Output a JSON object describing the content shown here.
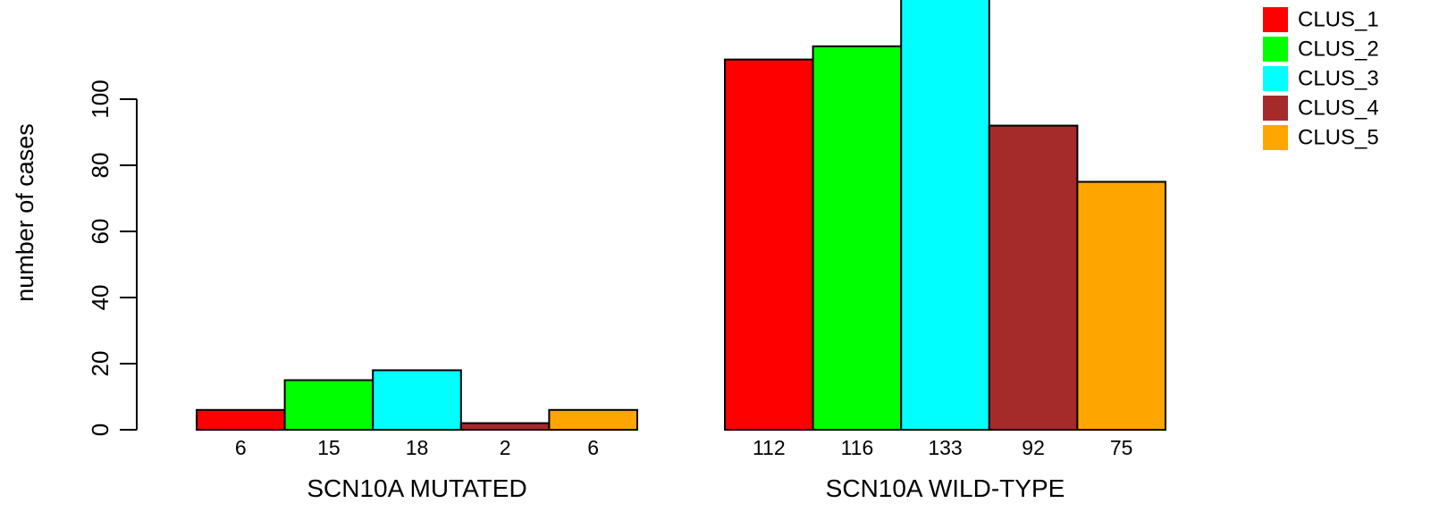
{
  "chart_data": {
    "type": "bar",
    "ylabel": "number of cases",
    "ylim": [
      0,
      130
    ],
    "yticks": [
      0,
      20,
      40,
      60,
      80,
      100
    ],
    "groups": [
      "SCN10A MUTATED",
      "SCN10A WILD-TYPE"
    ],
    "series": [
      {
        "name": "CLUS_1",
        "color": "#ff0000",
        "values": [
          6,
          112
        ]
      },
      {
        "name": "CLUS_2",
        "color": "#00ff00",
        "values": [
          15,
          116
        ]
      },
      {
        "name": "CLUS_3",
        "color": "#00ffff",
        "values": [
          18,
          133
        ]
      },
      {
        "name": "CLUS_4",
        "color": "#a52a2a",
        "values": [
          2,
          92
        ]
      },
      {
        "name": "CLUS_5",
        "color": "#ffa500",
        "values": [
          6,
          75
        ]
      }
    ],
    "value_labels": [
      [
        "6",
        "15",
        "18",
        "2",
        "6"
      ],
      [
        "112",
        "116",
        "133",
        "92",
        "75"
      ]
    ],
    "legend_position": "top-right",
    "grid": false
  }
}
